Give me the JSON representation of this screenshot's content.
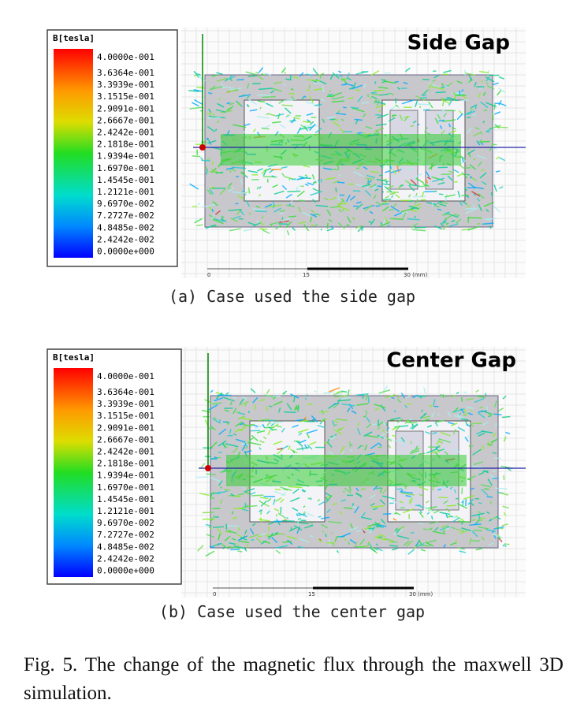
{
  "panels": [
    {
      "legend": {
        "title": "B[tesla]",
        "labels": [
          "4.0000e-001",
          "3.6364e-001",
          "3.3939e-001",
          "3.1515e-001",
          "2.9091e-001",
          "2.6667e-001",
          "2.4242e-001",
          "2.1818e-001",
          "1.9394e-001",
          "1.6970e-001",
          "1.4545e-001",
          "1.2121e-001",
          "9.6970e-002",
          "7.2727e-002",
          "4.8485e-002",
          "2.4242e-002",
          "0.0000e+000"
        ]
      },
      "label": "Side Gap",
      "scale": [
        "0",
        "15",
        "30 (mm)"
      ],
      "caption": "(a) Case used the side gap"
    },
    {
      "legend": {
        "title": "B[tesla]",
        "labels": [
          "4.0000e-001",
          "3.6364e-001",
          "3.3939e-001",
          "3.1515e-001",
          "2.9091e-001",
          "2.6667e-001",
          "2.4242e-001",
          "2.1818e-001",
          "1.9394e-001",
          "1.6970e-001",
          "1.4545e-001",
          "1.2121e-001",
          "9.6970e-002",
          "7.2727e-002",
          "4.8485e-002",
          "2.4242e-002",
          "0.0000e+000"
        ]
      },
      "label": "Center Gap",
      "scale": [
        "0",
        "15",
        "30 (mm)"
      ],
      "caption": "(b) Case used the center gap"
    }
  ],
  "figure_caption": "Fig. 5. The change of the magnetic flux through the maxwell 3D simulation."
}
